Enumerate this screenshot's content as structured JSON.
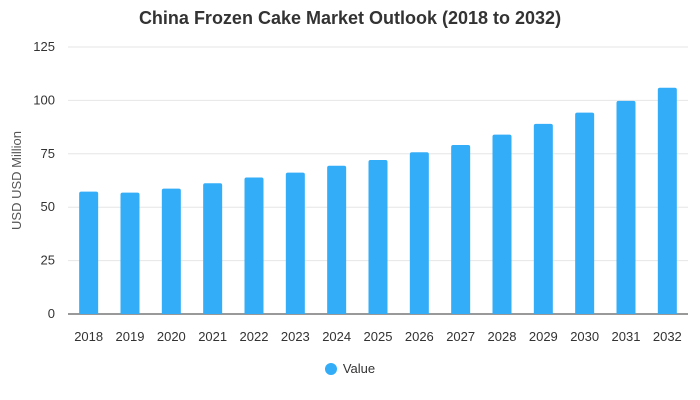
{
  "chart_data": {
    "type": "bar",
    "title": "China Frozen Cake Market Outlook (2018 to 2032)",
    "xlabel": "",
    "ylabel": "USD USD Million",
    "categories": [
      "2018",
      "2019",
      "2020",
      "2021",
      "2022",
      "2023",
      "2024",
      "2025",
      "2026",
      "2027",
      "2028",
      "2029",
      "2030",
      "2031",
      "2032"
    ],
    "series": [
      {
        "name": "Value",
        "values": [
          57.3,
          56.8,
          58.7,
          61.2,
          63.9,
          66.2,
          69.4,
          72.1,
          75.7,
          79.1,
          84.0,
          89.0,
          94.3,
          99.8,
          105.9
        ]
      }
    ],
    "ylim": [
      0,
      125
    ],
    "yticks": [
      0,
      25,
      50,
      75,
      100,
      125
    ],
    "grid": true,
    "legend_position": "bottom-center",
    "colors": {
      "bar": "#33adf7",
      "grid": "#e6e6e6",
      "axis": "#333333"
    }
  }
}
